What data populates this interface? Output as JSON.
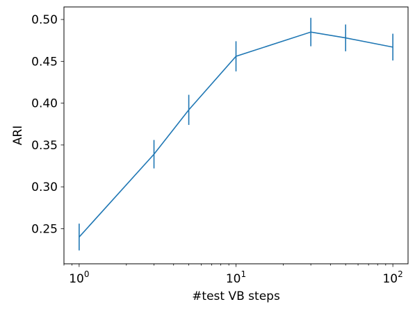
{
  "chart_data": {
    "type": "line",
    "xlabel": "#test VB steps",
    "ylabel": "ARI",
    "xscale": "log",
    "xlim": [
      0.8,
      125
    ],
    "ylim": [
      0.208,
      0.515
    ],
    "grid": false,
    "x_ticks": [
      {
        "value": 1,
        "base": "10",
        "exp": "0"
      },
      {
        "value": 10,
        "base": "10",
        "exp": "1"
      },
      {
        "value": 100,
        "base": "10",
        "exp": "2"
      }
    ],
    "y_ticks": [
      "0.25",
      "0.30",
      "0.35",
      "0.40",
      "0.45",
      "0.50"
    ],
    "line_color": "#1f77b4",
    "series": [
      {
        "x": [
          1,
          3,
          5,
          10,
          30,
          50,
          100
        ],
        "y": [
          0.24,
          0.339,
          0.392,
          0.456,
          0.485,
          0.478,
          0.467
        ],
        "err": [
          0.016,
          0.017,
          0.018,
          0.018,
          0.017,
          0.016,
          0.016
        ]
      }
    ]
  }
}
